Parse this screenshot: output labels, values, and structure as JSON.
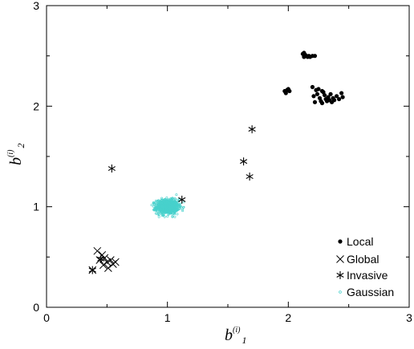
{
  "chart_data": {
    "type": "scatter",
    "xlim": [
      0,
      3
    ],
    "ylim": [
      0,
      3
    ],
    "x_ticks": [
      "0",
      "1",
      "2",
      "3"
    ],
    "y_ticks": [
      "0",
      "1",
      "2",
      "3"
    ],
    "xlabel": {
      "base": "b",
      "superscript": "(i)",
      "subscript": "1"
    },
    "ylabel": {
      "base": "b",
      "superscript": "(i)",
      "subscript": "2"
    },
    "grid": false,
    "legend_position": "bottom-right",
    "series": [
      {
        "name": "Local",
        "marker": "filled-circle",
        "color": "#000000",
        "points": [
          [
            2.12,
            2.52
          ],
          [
            2.13,
            2.49
          ],
          [
            2.14,
            2.51
          ],
          [
            2.15,
            2.5
          ],
          [
            2.16,
            2.49
          ],
          [
            2.17,
            2.5
          ],
          [
            2.18,
            2.49
          ],
          [
            2.2,
            2.5
          ],
          [
            2.22,
            2.5
          ],
          [
            2.13,
            2.53
          ],
          [
            1.97,
            2.15
          ],
          [
            1.98,
            2.13
          ],
          [
            1.99,
            2.16
          ],
          [
            2.0,
            2.17
          ],
          [
            2.01,
            2.15
          ],
          [
            2.2,
            2.19
          ],
          [
            2.21,
            2.1
          ],
          [
            2.23,
            2.16
          ],
          [
            2.24,
            2.12
          ],
          [
            2.25,
            2.17
          ],
          [
            2.26,
            2.08
          ],
          [
            2.27,
            2.05
          ],
          [
            2.28,
            2.03
          ],
          [
            2.29,
            2.14
          ],
          [
            2.3,
            2.11
          ],
          [
            2.31,
            2.07
          ],
          [
            2.32,
            2.05
          ],
          [
            2.33,
            2.09
          ],
          [
            2.34,
            2.06
          ],
          [
            2.35,
            2.12
          ],
          [
            2.36,
            2.04
          ],
          [
            2.37,
            2.08
          ],
          [
            2.38,
            2.06
          ],
          [
            2.4,
            2.1
          ],
          [
            2.42,
            2.07
          ],
          [
            2.44,
            2.13
          ],
          [
            2.45,
            2.09
          ],
          [
            2.28,
            2.15
          ],
          [
            2.22,
            2.04
          ]
        ]
      },
      {
        "name": "Global",
        "marker": "x",
        "color": "#000000",
        "points": [
          [
            0.42,
            0.56
          ],
          [
            0.44,
            0.47
          ],
          [
            0.46,
            0.52
          ],
          [
            0.47,
            0.42
          ],
          [
            0.48,
            0.49
          ],
          [
            0.5,
            0.45
          ],
          [
            0.51,
            0.39
          ],
          [
            0.53,
            0.47
          ],
          [
            0.55,
            0.43
          ],
          [
            0.57,
            0.45
          ],
          [
            0.38,
            0.37
          ]
        ]
      },
      {
        "name": "Invasive",
        "marker": "asterisk",
        "color": "#000000",
        "points": [
          [
            0.54,
            1.38
          ],
          [
            1.12,
            1.07
          ],
          [
            1.63,
            1.45
          ],
          [
            1.68,
            1.3
          ],
          [
            1.7,
            1.77
          ],
          [
            0.38,
            0.37
          ],
          [
            0.45,
            0.48
          ]
        ]
      },
      {
        "name": "Gaussian",
        "marker": "open-circle",
        "color": "#48d1cc",
        "cloud": {
          "center": [
            1.0,
            1.0
          ],
          "spread": [
            0.045,
            0.035
          ],
          "count": 900,
          "x_range": [
            0.87,
            1.14
          ],
          "y_range": [
            0.9,
            1.12
          ]
        }
      }
    ]
  }
}
